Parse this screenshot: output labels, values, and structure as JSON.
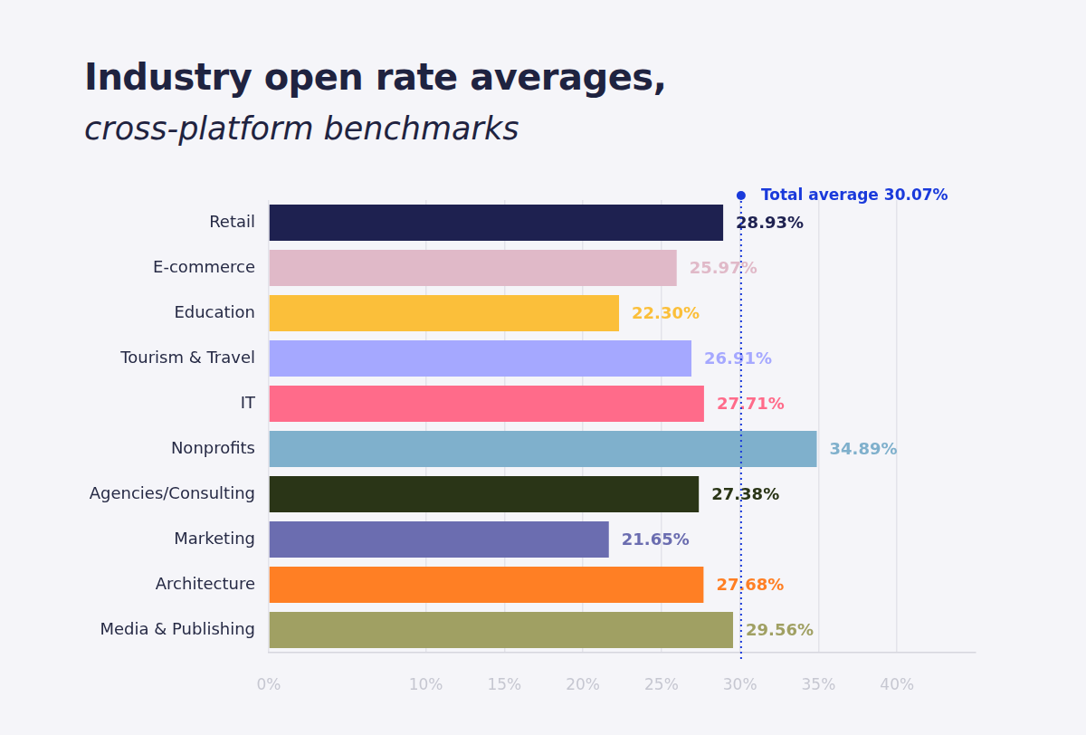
{
  "chart_data": {
    "type": "bar",
    "orientation": "horizontal",
    "title": "Industry open rate averages,",
    "subtitle": "cross-platform benchmarks",
    "categories": [
      "Retail",
      "E-commerce",
      "Education",
      "Tourism & Travel",
      "IT",
      "Nonprofits",
      "Agencies/Consulting",
      "Marketing",
      "Architecture",
      "Media & Publishing"
    ],
    "values": [
      28.93,
      25.97,
      22.3,
      26.91,
      27.71,
      34.89,
      27.38,
      21.65,
      27.68,
      29.56
    ],
    "value_labels": [
      "28.93%",
      "25.97%",
      "22.30%",
      "26.91%",
      "27.71%",
      "34.89%",
      "27.38%",
      "21.65%",
      "27.68%",
      "29.56%"
    ],
    "colors": [
      "#1e2150",
      "#e0b9c8",
      "#fbbf3a",
      "#a5a8ff",
      "#ff6b8a",
      "#7fb0cc",
      "#2a3517",
      "#6b6db0",
      "#ff7f24",
      "#a0a063"
    ],
    "xlim": [
      0,
      45
    ],
    "xticks": [
      {
        "value": 0,
        "label": "0%"
      },
      {
        "value": 10,
        "label": "10%"
      },
      {
        "value": 15,
        "label": "15%"
      },
      {
        "value": 20,
        "label": "20%"
      },
      {
        "value": 25,
        "label": "25%"
      },
      {
        "value": 30,
        "label": "30%"
      },
      {
        "value": 35,
        "label": "35%"
      },
      {
        "value": 40,
        "label": "40%"
      }
    ],
    "annotations": [
      {
        "label": "Total average 30.07%",
        "value": 30.07
      }
    ],
    "grid": true,
    "data_labels": true
  }
}
